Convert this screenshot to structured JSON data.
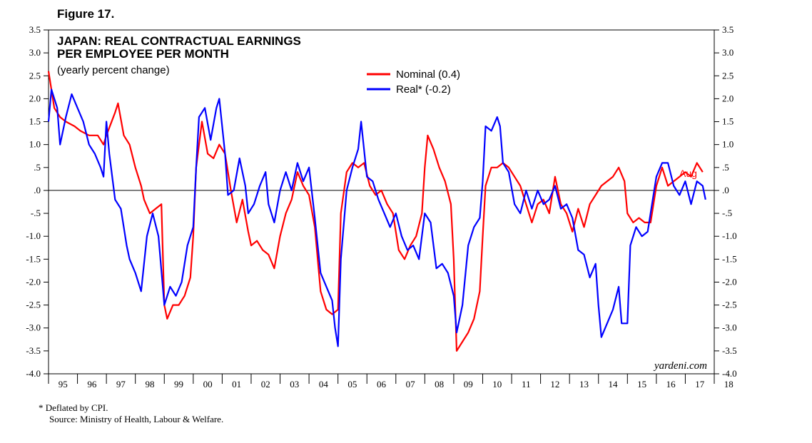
{
  "figure_label": "Figure 17.",
  "footnote": {
    "line1": "*   Deflated by CPI.",
    "line2": "Source: Ministry of Health, Labour & Welfare."
  },
  "chart_data": {
    "type": "line",
    "title_line1": "JAPAN: REAL CONTRACTUAL EARNINGS",
    "title_line2": "PER EMPLOYEE PER MONTH",
    "subtitle": "(yearly percent change)",
    "source_label": "yardeni.com",
    "end_label": "Aug",
    "ylim": [
      -4.0,
      3.5
    ],
    "y_ticks": [
      "3.5",
      "3.0",
      "2.5",
      "2.0",
      "1.5",
      "1.0",
      ".5",
      ".0",
      "-.5",
      "-1.0",
      "-1.5",
      "-2.0",
      "-2.5",
      "-3.0",
      "-3.5",
      "-4.0"
    ],
    "y_tick_values": [
      3.5,
      3.0,
      2.5,
      2.0,
      1.5,
      1.0,
      0.5,
      0.0,
      -0.5,
      -1.0,
      -1.5,
      -2.0,
      -2.5,
      -3.0,
      -3.5,
      -4.0
    ],
    "x_range": [
      1995.0,
      2018.0
    ],
    "x_tick_labels": [
      "95",
      "96",
      "97",
      "98",
      "99",
      "00",
      "01",
      "02",
      "03",
      "04",
      "05",
      "06",
      "07",
      "08",
      "09",
      "10",
      "11",
      "12",
      "13",
      "14",
      "15",
      "16",
      "17",
      "18"
    ],
    "x_tick_years": [
      1995,
      1996,
      1997,
      1998,
      1999,
      2000,
      2001,
      2002,
      2003,
      2004,
      2005,
      2006,
      2007,
      2008,
      2009,
      2010,
      2011,
      2012,
      2013,
      2014,
      2015,
      2016,
      2017,
      2018
    ],
    "colors": {
      "nominal": "#ff0000",
      "real": "#0000ff"
    },
    "series": [
      {
        "name": "Nominal (0.4)",
        "key": "nominal",
        "points": [
          [
            1995.0,
            2.6
          ],
          [
            1995.2,
            1.8
          ],
          [
            1995.4,
            1.6
          ],
          [
            1995.6,
            1.5
          ],
          [
            1995.9,
            1.4
          ],
          [
            1996.1,
            1.3
          ],
          [
            1996.4,
            1.2
          ],
          [
            1996.7,
            1.2
          ],
          [
            1996.9,
            1.0
          ],
          [
            1997.0,
            1.2
          ],
          [
            1997.3,
            1.7
          ],
          [
            1997.4,
            1.9
          ],
          [
            1997.6,
            1.2
          ],
          [
            1997.8,
            1.0
          ],
          [
            1998.0,
            0.5
          ],
          [
            1998.2,
            0.1
          ],
          [
            1998.3,
            -0.2
          ],
          [
            1998.5,
            -0.5
          ],
          [
            1998.7,
            -0.4
          ],
          [
            1998.9,
            -0.3
          ],
          [
            1999.0,
            -2.5
          ],
          [
            1999.1,
            -2.8
          ],
          [
            1999.3,
            -2.5
          ],
          [
            1999.5,
            -2.5
          ],
          [
            1999.7,
            -2.3
          ],
          [
            1999.9,
            -1.9
          ],
          [
            2000.0,
            -1.0
          ],
          [
            2000.1,
            0.5
          ],
          [
            2000.3,
            1.5
          ],
          [
            2000.5,
            0.8
          ],
          [
            2000.7,
            0.7
          ],
          [
            2000.9,
            1.0
          ],
          [
            2001.1,
            0.8
          ],
          [
            2001.3,
            0.0
          ],
          [
            2001.5,
            -0.7
          ],
          [
            2001.7,
            -0.2
          ],
          [
            2001.9,
            -0.9
          ],
          [
            2002.0,
            -1.2
          ],
          [
            2002.2,
            -1.1
          ],
          [
            2002.4,
            -1.3
          ],
          [
            2002.6,
            -1.4
          ],
          [
            2002.8,
            -1.7
          ],
          [
            2003.0,
            -1.0
          ],
          [
            2003.2,
            -0.5
          ],
          [
            2003.4,
            -0.2
          ],
          [
            2003.6,
            0.4
          ],
          [
            2003.8,
            0.1
          ],
          [
            2004.0,
            -0.1
          ],
          [
            2004.2,
            -0.8
          ],
          [
            2004.4,
            -2.2
          ],
          [
            2004.6,
            -2.6
          ],
          [
            2004.8,
            -2.7
          ],
          [
            2005.0,
            -2.6
          ],
          [
            2005.1,
            -0.5
          ],
          [
            2005.3,
            0.4
          ],
          [
            2005.5,
            0.6
          ],
          [
            2005.7,
            0.5
          ],
          [
            2005.9,
            0.6
          ],
          [
            2006.1,
            0.1
          ],
          [
            2006.3,
            -0.1
          ],
          [
            2006.5,
            0.0
          ],
          [
            2006.7,
            -0.3
          ],
          [
            2006.9,
            -0.5
          ],
          [
            2007.1,
            -1.3
          ],
          [
            2007.3,
            -1.5
          ],
          [
            2007.5,
            -1.2
          ],
          [
            2007.7,
            -1.0
          ],
          [
            2007.9,
            -0.5
          ],
          [
            2008.0,
            0.5
          ],
          [
            2008.1,
            1.2
          ],
          [
            2008.3,
            0.9
          ],
          [
            2008.5,
            0.5
          ],
          [
            2008.7,
            0.2
          ],
          [
            2008.9,
            -0.3
          ],
          [
            2009.0,
            -1.5
          ],
          [
            2009.1,
            -3.5
          ],
          [
            2009.3,
            -3.3
          ],
          [
            2009.5,
            -3.1
          ],
          [
            2009.7,
            -2.8
          ],
          [
            2009.9,
            -2.2
          ],
          [
            2010.0,
            -1.0
          ],
          [
            2010.1,
            0.1
          ],
          [
            2010.3,
            0.5
          ],
          [
            2010.5,
            0.5
          ],
          [
            2010.7,
            0.6
          ],
          [
            2010.9,
            0.5
          ],
          [
            2011.1,
            0.3
          ],
          [
            2011.3,
            0.1
          ],
          [
            2011.5,
            -0.3
          ],
          [
            2011.7,
            -0.7
          ],
          [
            2011.9,
            -0.3
          ],
          [
            2012.1,
            -0.2
          ],
          [
            2012.3,
            -0.5
          ],
          [
            2012.5,
            0.3
          ],
          [
            2012.7,
            -0.3
          ],
          [
            2012.9,
            -0.5
          ],
          [
            2013.1,
            -0.9
          ],
          [
            2013.3,
            -0.4
          ],
          [
            2013.5,
            -0.8
          ],
          [
            2013.7,
            -0.3
          ],
          [
            2013.9,
            -0.1
          ],
          [
            2014.1,
            0.1
          ],
          [
            2014.3,
            0.2
          ],
          [
            2014.5,
            0.3
          ],
          [
            2014.7,
            0.5
          ],
          [
            2014.9,
            0.2
          ],
          [
            2015.0,
            -0.5
          ],
          [
            2015.2,
            -0.7
          ],
          [
            2015.4,
            -0.6
          ],
          [
            2015.6,
            -0.7
          ],
          [
            2015.8,
            -0.7
          ],
          [
            2016.0,
            0.1
          ],
          [
            2016.2,
            0.5
          ],
          [
            2016.4,
            0.1
          ],
          [
            2016.6,
            0.2
          ],
          [
            2016.8,
            0.3
          ],
          [
            2017.0,
            0.4
          ],
          [
            2017.2,
            0.3
          ],
          [
            2017.4,
            0.6
          ],
          [
            2017.6,
            0.4
          ]
        ]
      },
      {
        "name": "Real* (-0.2)",
        "key": "real",
        "points": [
          [
            1995.0,
            1.5
          ],
          [
            1995.1,
            2.2
          ],
          [
            1995.3,
            1.8
          ],
          [
            1995.4,
            1.0
          ],
          [
            1995.6,
            1.6
          ],
          [
            1995.8,
            2.1
          ],
          [
            1996.0,
            1.8
          ],
          [
            1996.2,
            1.5
          ],
          [
            1996.4,
            1.0
          ],
          [
            1996.6,
            0.8
          ],
          [
            1996.8,
            0.5
          ],
          [
            1996.9,
            0.3
          ],
          [
            1997.0,
            1.5
          ],
          [
            1997.1,
            0.8
          ],
          [
            1997.3,
            -0.2
          ],
          [
            1997.5,
            -0.4
          ],
          [
            1997.7,
            -1.2
          ],
          [
            1997.8,
            -1.5
          ],
          [
            1998.0,
            -1.8
          ],
          [
            1998.2,
            -2.2
          ],
          [
            1998.4,
            -1.0
          ],
          [
            1998.6,
            -0.5
          ],
          [
            1998.8,
            -1.0
          ],
          [
            1999.0,
            -2.5
          ],
          [
            1999.2,
            -2.1
          ],
          [
            1999.4,
            -2.3
          ],
          [
            1999.6,
            -2.0
          ],
          [
            1999.8,
            -1.2
          ],
          [
            2000.0,
            -0.8
          ],
          [
            2000.1,
            0.5
          ],
          [
            2000.2,
            1.6
          ],
          [
            2000.4,
            1.8
          ],
          [
            2000.6,
            1.1
          ],
          [
            2000.8,
            1.8
          ],
          [
            2000.9,
            2.0
          ],
          [
            2001.1,
            0.8
          ],
          [
            2001.2,
            -0.1
          ],
          [
            2001.4,
            0.0
          ],
          [
            2001.6,
            0.7
          ],
          [
            2001.8,
            0.1
          ],
          [
            2001.9,
            -0.5
          ],
          [
            2002.1,
            -0.3
          ],
          [
            2002.3,
            0.1
          ],
          [
            2002.5,
            0.4
          ],
          [
            2002.6,
            -0.3
          ],
          [
            2002.8,
            -0.7
          ],
          [
            2003.0,
            0.0
          ],
          [
            2003.2,
            0.4
          ],
          [
            2003.4,
            0.0
          ],
          [
            2003.6,
            0.6
          ],
          [
            2003.8,
            0.2
          ],
          [
            2004.0,
            0.5
          ],
          [
            2004.2,
            -0.6
          ],
          [
            2004.4,
            -1.8
          ],
          [
            2004.6,
            -2.1
          ],
          [
            2004.8,
            -2.4
          ],
          [
            2004.9,
            -3.0
          ],
          [
            2005.0,
            -3.4
          ],
          [
            2005.1,
            -1.5
          ],
          [
            2005.3,
            0.0
          ],
          [
            2005.5,
            0.5
          ],
          [
            2005.7,
            0.9
          ],
          [
            2005.8,
            1.5
          ],
          [
            2006.0,
            0.3
          ],
          [
            2006.2,
            0.2
          ],
          [
            2006.4,
            -0.2
          ],
          [
            2006.6,
            -0.5
          ],
          [
            2006.8,
            -0.8
          ],
          [
            2007.0,
            -0.5
          ],
          [
            2007.2,
            -1.0
          ],
          [
            2007.4,
            -1.3
          ],
          [
            2007.6,
            -1.2
          ],
          [
            2007.8,
            -1.5
          ],
          [
            2008.0,
            -0.5
          ],
          [
            2008.2,
            -0.7
          ],
          [
            2008.4,
            -1.7
          ],
          [
            2008.6,
            -1.6
          ],
          [
            2008.8,
            -1.8
          ],
          [
            2009.0,
            -2.3
          ],
          [
            2009.1,
            -3.1
          ],
          [
            2009.3,
            -2.5
          ],
          [
            2009.5,
            -1.2
          ],
          [
            2009.7,
            -0.8
          ],
          [
            2009.9,
            -0.6
          ],
          [
            2010.0,
            0.2
          ],
          [
            2010.1,
            1.4
          ],
          [
            2010.3,
            1.3
          ],
          [
            2010.5,
            1.6
          ],
          [
            2010.6,
            1.4
          ],
          [
            2010.7,
            0.6
          ],
          [
            2010.9,
            0.4
          ],
          [
            2011.1,
            -0.3
          ],
          [
            2011.3,
            -0.5
          ],
          [
            2011.5,
            0.0
          ],
          [
            2011.7,
            -0.4
          ],
          [
            2011.9,
            0.0
          ],
          [
            2012.1,
            -0.3
          ],
          [
            2012.3,
            -0.2
          ],
          [
            2012.5,
            0.1
          ],
          [
            2012.7,
            -0.4
          ],
          [
            2012.9,
            -0.3
          ],
          [
            2013.1,
            -0.6
          ],
          [
            2013.3,
            -1.3
          ],
          [
            2013.5,
            -1.4
          ],
          [
            2013.7,
            -1.9
          ],
          [
            2013.9,
            -1.6
          ],
          [
            2014.0,
            -2.5
          ],
          [
            2014.1,
            -3.2
          ],
          [
            2014.3,
            -2.9
          ],
          [
            2014.5,
            -2.6
          ],
          [
            2014.7,
            -2.1
          ],
          [
            2014.8,
            -2.9
          ],
          [
            2015.0,
            -2.9
          ],
          [
            2015.1,
            -1.2
          ],
          [
            2015.3,
            -0.8
          ],
          [
            2015.5,
            -1.0
          ],
          [
            2015.7,
            -0.9
          ],
          [
            2015.9,
            -0.1
          ],
          [
            2016.0,
            0.3
          ],
          [
            2016.2,
            0.6
          ],
          [
            2016.4,
            0.6
          ],
          [
            2016.6,
            0.1
          ],
          [
            2016.8,
            -0.1
          ],
          [
            2017.0,
            0.2
          ],
          [
            2017.2,
            -0.3
          ],
          [
            2017.4,
            0.2
          ],
          [
            2017.6,
            0.1
          ],
          [
            2017.7,
            -0.2
          ]
        ]
      }
    ]
  }
}
